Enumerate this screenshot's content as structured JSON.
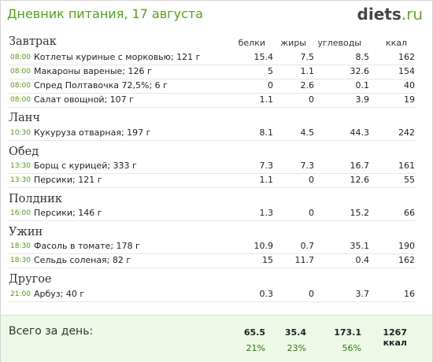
{
  "header": {
    "title": "Дневник питания, 17 августа",
    "logo_main": "diets",
    "logo_tld": ".ru"
  },
  "columns": [
    "белки",
    "жиры",
    "углеводы",
    "ккал"
  ],
  "sections": [
    {
      "name": "Завтрак",
      "items": [
        {
          "time": "08:00",
          "food": "Котлеты куриные с морковью; 121 г",
          "protein": "15.4",
          "fat": "7.5",
          "carbs": "8.5",
          "kcal": "162"
        },
        {
          "time": "08:00",
          "food": "Макароны вареные; 126 г",
          "protein": "5",
          "fat": "1.1",
          "carbs": "32.6",
          "kcal": "154"
        },
        {
          "time": "08:00",
          "food": "Спред Полтавочка 72,5%; 6 г",
          "protein": "0",
          "fat": "2.6",
          "carbs": "0.1",
          "kcal": "40"
        },
        {
          "time": "08:00",
          "food": "Салат овощной; 107 г",
          "protein": "1.1",
          "fat": "0",
          "carbs": "3.9",
          "kcal": "19"
        }
      ]
    },
    {
      "name": "Ланч",
      "items": [
        {
          "time": "10:30",
          "food": "Кукуруза отварная; 197 г",
          "protein": "8.1",
          "fat": "4.5",
          "carbs": "44.3",
          "kcal": "242"
        }
      ]
    },
    {
      "name": "Обед",
      "items": [
        {
          "time": "13:30",
          "food": "Борщ с курицей; 333 г",
          "protein": "7.3",
          "fat": "7.3",
          "carbs": "16.7",
          "kcal": "161"
        },
        {
          "time": "13:30",
          "food": "Персики; 121 г",
          "protein": "1.1",
          "fat": "0",
          "carbs": "12.6",
          "kcal": "55"
        }
      ]
    },
    {
      "name": "Полдник",
      "items": [
        {
          "time": "16:00",
          "food": "Персики; 146 г",
          "protein": "1.3",
          "fat": "0",
          "carbs": "15.2",
          "kcal": "66"
        }
      ]
    },
    {
      "name": "Ужин",
      "items": [
        {
          "time": "18:30",
          "food": "Фасоль в томате; 178 г",
          "protein": "10.9",
          "fat": "0.7",
          "carbs": "35.1",
          "kcal": "190"
        },
        {
          "time": "18:30",
          "food": "Сельдь соленая; 82 г",
          "protein": "15",
          "fat": "11.7",
          "carbs": "0.4",
          "kcal": "162"
        }
      ]
    },
    {
      "name": "Другое",
      "items": [
        {
          "time": "21:00",
          "food": "Арбуз; 40 г",
          "protein": "0.3",
          "fat": "0",
          "carbs": "3.7",
          "kcal": "16"
        }
      ]
    }
  ],
  "totals": {
    "label": "Всего за день:",
    "protein": "65.5",
    "fat": "35.4",
    "carbs": "173.1",
    "kcal": "1267 ккал",
    "protein_pct": "21%",
    "fat_pct": "23%",
    "carbs_pct": "56%"
  },
  "colors": {
    "title": "#55a01e",
    "time": "#4c9a1a",
    "footer_bg": "#eef8e6",
    "percent": "#2f7c10"
  }
}
